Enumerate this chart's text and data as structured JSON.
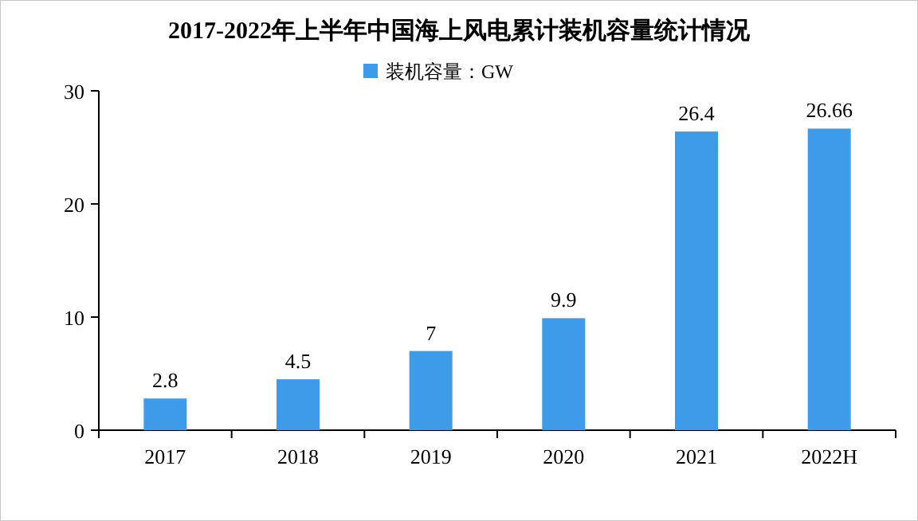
{
  "chart_data": {
    "type": "bar",
    "title": "2017-2022年上半年中国海上风电累计装机容量统计情况",
    "categories": [
      "2017",
      "2018",
      "2019",
      "2020",
      "2021",
      "2022H"
    ],
    "series": [
      {
        "name": "装机容量：GW",
        "color": "#3d9bea",
        "values": [
          2.8,
          4.5,
          7,
          9.9,
          26.4,
          26.66
        ]
      }
    ],
    "ylim": [
      0,
      30
    ],
    "yticks": [
      0,
      10,
      20,
      30
    ],
    "data_labels": true,
    "legend": "top",
    "grid": false
  }
}
